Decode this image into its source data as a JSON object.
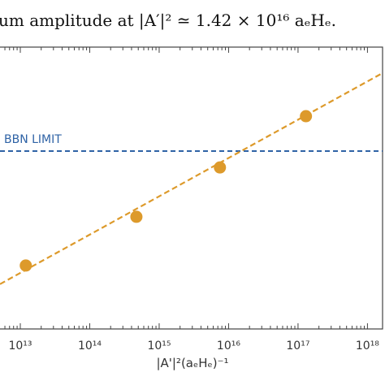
{
  "chart_data": {
    "type": "scatter",
    "caption": "um amplitude at |A′|² ≃ 1.42 × 10¹⁶ aₑHₑ.",
    "x_label": "|A'|²(aₑHₑ)⁻¹",
    "annotation": "BBN LIMIT",
    "x": [
      12000000000000.0,
      470000000000000.0,
      7500000000000000.0,
      1.3e+17
    ],
    "values": [
      0.225,
      0.398,
      0.573,
      0.755
    ],
    "color": "#dd9a2b",
    "fit": {
      "x": [
        5100000000000.0,
        1.65e+18
      ],
      "values": [
        0.159,
        0.908
      ],
      "color": "#dd9a2b"
    },
    "limit": {
      "value": 0.631,
      "color": "#2f63a6"
    },
    "xscale": "log",
    "xlim": [
      5100000000000.0,
      1.65e+18
    ],
    "ylim": [
      0,
      1
    ],
    "xticks": [
      {
        "value": 10000000000000.0,
        "label": "10¹³"
      },
      {
        "value": 100000000000000.0,
        "label": "10¹⁴"
      },
      {
        "value": 1000000000000000.0,
        "label": "10¹⁵"
      },
      {
        "value": 1e+16,
        "label": "10¹⁶"
      },
      {
        "value": 1e+17,
        "label": "10¹⁷"
      },
      {
        "value": 1e+18,
        "label": "10¹⁸"
      }
    ]
  }
}
